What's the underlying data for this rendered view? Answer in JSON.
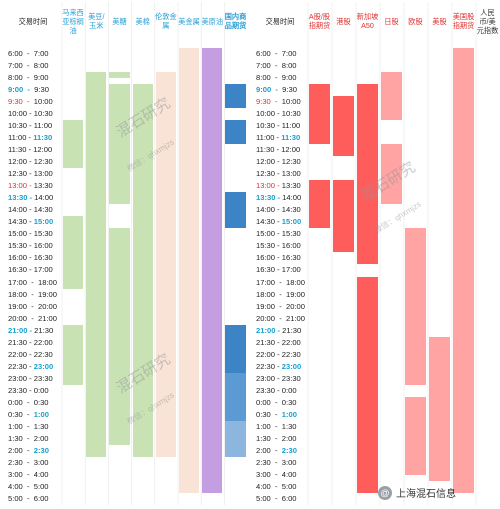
{
  "chart_data": {
    "type": "table",
    "axis_label": "交易时间",
    "time_rows": [
      {
        "label": "6:00  -  7:00",
        "start": "6:00",
        "hl": ""
      },
      {
        "label": "7:00  -  8:00",
        "start": "7:00",
        "hl": ""
      },
      {
        "label": "8:00  -  9:00",
        "start": "8:00",
        "hl": ""
      },
      {
        "label": "9:00  -  9:30",
        "start": "9:00",
        "hl": "blue-start"
      },
      {
        "label": "9:30  -  10:00",
        "start": "9:30",
        "hl": "red-start"
      },
      {
        "label": "10:00 - 10:30",
        "start": "10:00",
        "hl": ""
      },
      {
        "label": "10:30 - 11:00",
        "start": "10:30",
        "hl": ""
      },
      {
        "label": "11:00 - 11:30",
        "start": "11:00",
        "hl": "blue-end"
      },
      {
        "label": "11:30 - 12:00",
        "start": "11:30",
        "hl": ""
      },
      {
        "label": "12:00 - 12:30",
        "start": "12:00",
        "hl": ""
      },
      {
        "label": "12:30 - 13:00",
        "start": "12:30",
        "hl": ""
      },
      {
        "label": "13:00 - 13:30",
        "start": "13:00",
        "hl": "red"
      },
      {
        "label": "13:30 - 14:00",
        "start": "13:30",
        "hl": "blue-start"
      },
      {
        "label": "14:00 - 14:30",
        "start": "14:00",
        "hl": ""
      },
      {
        "label": "14:30 - 15:00",
        "start": "14:30",
        "hl": "blue-end"
      },
      {
        "label": "15:00 - 15:30",
        "start": "15:00",
        "hl": ""
      },
      {
        "label": "15:30 - 16:00",
        "start": "15:30",
        "hl": ""
      },
      {
        "label": "16:00 - 16:30",
        "start": "16:00",
        "hl": ""
      },
      {
        "label": "16:30 - 17:00",
        "start": "16:30",
        "hl": ""
      },
      {
        "label": "17:00  -  18:00",
        "start": "17:00",
        "hl": ""
      },
      {
        "label": "18:00  -  19:00",
        "start": "18:00",
        "hl": ""
      },
      {
        "label": "19:00  -  20:00",
        "start": "19:00",
        "hl": ""
      },
      {
        "label": "20:00  -  21:00",
        "start": "20:00",
        "hl": ""
      },
      {
        "label": "21:00 - 21:30",
        "start": "21:00",
        "hl": "blue-start"
      },
      {
        "label": "21:30 - 22:00",
        "start": "21:30",
        "hl": ""
      },
      {
        "label": "22:00 - 22:30",
        "start": "22:00",
        "hl": ""
      },
      {
        "label": "22:30 - 23:00",
        "start": "22:30",
        "hl": "blue-end"
      },
      {
        "label": "23:00 - 23:30",
        "start": "23:00",
        "hl": ""
      },
      {
        "label": "23:30 - 0:00",
        "start": "23:30",
        "hl": ""
      },
      {
        "label": "0:00  -  0:30",
        "start": "0:00",
        "hl": ""
      },
      {
        "label": "0:30  -  1:00",
        "start": "0:30",
        "hl": "blue-end"
      },
      {
        "label": "1:00  -  1:30",
        "start": "1:00",
        "hl": ""
      },
      {
        "label": "1:30  -  2:00",
        "start": "1:30",
        "hl": ""
      },
      {
        "label": "2:00  -  2:30",
        "start": "2:00",
        "hl": "blue-end"
      },
      {
        "label": "2:30  -  3:00",
        "start": "2:30",
        "hl": ""
      },
      {
        "label": "3:00  -  4:00",
        "start": "3:00",
        "hl": ""
      },
      {
        "label": "4:00  -  5:00",
        "start": "4:00",
        "hl": ""
      },
      {
        "label": "5:00  -  6:00",
        "start": "5:00",
        "hl": ""
      }
    ],
    "left_columns": [
      {
        "name": "马来西亚棕榈油",
        "color": "#c8e2b4",
        "ranges": [
          [
            "10:30",
            "12:30"
          ],
          [
            "14:30",
            "18:00"
          ],
          [
            "21:00",
            "23:30"
          ]
        ]
      },
      {
        "name": "美豆/玉米",
        "color": "#c8e2b4",
        "ranges": [
          [
            "8:00",
            "2:30"
          ]
        ]
      },
      {
        "name": "美糖",
        "color": "#c8e2b4",
        "ranges": [
          [
            "8:00",
            "8:30"
          ],
          [
            "9:00",
            "14:00"
          ],
          [
            "15:00",
            "2:00"
          ]
        ]
      },
      {
        "name": "美棉",
        "color": "#c8e2b4",
        "ranges": [
          [
            "9:00",
            "2:30"
          ]
        ]
      },
      {
        "name": "伦敦金属",
        "color": "#f9e2d6",
        "ranges": [
          [
            "8:00",
            "2:30"
          ]
        ]
      },
      {
        "name": "美金属",
        "color": "#f9e2d6",
        "ranges": [
          [
            "6:00",
            "5:00"
          ]
        ]
      },
      {
        "name": "美原油",
        "color": "#c49ee0",
        "ranges": [
          [
            "6:00",
            "5:00"
          ]
        ]
      },
      {
        "name": "国内商品期货",
        "color": "#3d84c6",
        "ranges": [
          [
            "9:00",
            "10:00"
          ],
          [
            "10:30",
            "11:30"
          ],
          [
            "13:30",
            "15:00"
          ],
          [
            "21:00",
            "23:00"
          ]
        ],
        "extra": [
          {
            "from": "23:00",
            "to": "1:00",
            "color": "#5b9ad2"
          },
          {
            "from": "1:00",
            "to": "2:30",
            "color": "#8db6de"
          }
        ]
      }
    ],
    "right_columns": [
      {
        "name": "A股/股指期货",
        "color": "#ff5c5c",
        "ranges": [
          [
            "9:00",
            "11:30"
          ],
          [
            "13:00",
            "15:00"
          ]
        ]
      },
      {
        "name": "港股",
        "color": "#ff5c5c",
        "ranges": [
          [
            "9:30",
            "12:00"
          ],
          [
            "13:00",
            "16:00"
          ]
        ]
      },
      {
        "name": "新加坡A50",
        "color": "#ff5c5c",
        "ranges": [
          [
            "9:00",
            "16:30"
          ],
          [
            "17:00",
            "5:00"
          ]
        ]
      },
      {
        "name": "日股",
        "color": "#ffa3a3",
        "ranges": [
          [
            "8:00",
            "10:30"
          ],
          [
            "11:30",
            "14:00"
          ]
        ]
      },
      {
        "name": "欧股",
        "color": "#ffa3a3",
        "ranges": [
          [
            "15:00",
            "23:30"
          ],
          [
            "0:00",
            "3:30"
          ]
        ]
      },
      {
        "name": "美股",
        "color": "#ffa3a3",
        "ranges": [
          [
            "21:30",
            "4:00"
          ]
        ]
      },
      {
        "name": "美国股指期货",
        "color": "#ffa3a3",
        "ranges": [
          [
            "6:00",
            "5:00"
          ]
        ]
      },
      {
        "name": "人民币/美元指数",
        "color": "#ffffff",
        "ranges": []
      }
    ]
  },
  "watermark": {
    "title": "混石研究",
    "wechat": "微信：qhxmjzs"
  },
  "footer": {
    "icon": "@",
    "text": "上海混石信息"
  },
  "colors": {
    "blue": "#1aa0ce",
    "red": "#e03030",
    "header_blue": "#2a9fd6",
    "header_red": "#e03030"
  }
}
